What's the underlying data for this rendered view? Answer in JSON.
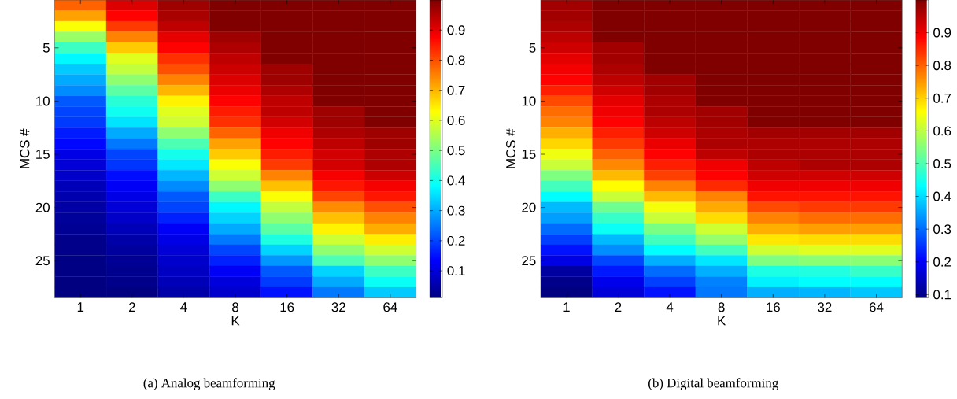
{
  "chart_data": [
    {
      "type": "heatmap",
      "title": "(a)  Analog beamforming",
      "xlabel": "K",
      "ylabel": "MCS #",
      "categories": [
        "1",
        "2",
        "4",
        "8",
        "16",
        "32",
        "64"
      ],
      "y_categories": [
        null,
        null,
        null,
        null,
        "5",
        null,
        null,
        null,
        null,
        "10",
        null,
        null,
        null,
        null,
        "15",
        null,
        null,
        null,
        null,
        "20",
        null,
        null,
        null,
        null,
        "25",
        null,
        null,
        null
      ],
      "cells": [
        [
          0.78,
          0.91,
          0.97,
          1,
          1,
          1,
          1
        ],
        [
          0.72,
          0.875,
          0.96,
          1,
          1,
          1,
          1
        ],
        [
          0.625,
          0.82,
          0.94,
          1,
          1,
          1,
          1
        ],
        [
          0.53,
          0.75,
          0.9,
          0.97,
          1,
          1,
          1
        ],
        [
          0.44,
          0.68,
          0.875,
          0.955,
          1,
          1,
          1
        ],
        [
          0.375,
          0.6,
          0.83,
          0.94,
          1,
          1,
          1
        ],
        [
          0.33,
          0.57,
          0.8,
          0.925,
          0.97,
          1,
          1
        ],
        [
          0.3,
          0.52,
          0.75,
          0.91,
          0.97,
          1,
          1
        ],
        [
          0.27,
          0.47,
          0.7,
          0.895,
          0.955,
          1,
          1
        ],
        [
          0.22,
          0.42,
          0.64,
          0.875,
          0.94,
          1,
          1
        ],
        [
          0.2,
          0.395,
          0.6,
          0.85,
          0.94,
          0.97,
          1
        ],
        [
          0.19,
          0.355,
          0.58,
          0.83,
          0.92,
          0.97,
          1
        ],
        [
          0.16,
          0.3,
          0.52,
          0.78,
          0.89,
          0.955,
          0.97
        ],
        [
          0.14,
          0.25,
          0.455,
          0.72,
          0.875,
          0.94,
          0.97
        ],
        [
          0.11,
          0.2,
          0.4,
          0.68,
          0.85,
          0.92,
          0.955
        ],
        [
          0.095,
          0.185,
          0.36,
          0.625,
          0.82,
          0.92,
          0.955
        ],
        [
          0.08,
          0.145,
          0.31,
          0.58,
          0.75,
          0.885,
          0.925
        ],
        [
          0.065,
          0.125,
          0.27,
          0.52,
          0.69,
          0.855,
          0.885
        ],
        [
          0.055,
          0.11,
          0.22,
          0.44,
          0.625,
          0.81,
          0.855
        ],
        [
          0.045,
          0.095,
          0.2,
          0.375,
          0.57,
          0.74,
          0.8
        ],
        [
          0.035,
          0.08,
          0.165,
          0.34,
          0.52,
          0.69,
          0.75
        ],
        [
          0.03,
          0.065,
          0.125,
          0.3,
          0.47,
          0.64,
          0.71
        ],
        [
          0.02,
          0.05,
          0.11,
          0.25,
          0.41,
          0.58,
          0.645
        ],
        [
          0.02,
          0.04,
          0.095,
          0.2,
          0.34,
          0.52,
          0.58
        ],
        [
          0.015,
          0.03,
          0.085,
          0.165,
          0.28,
          0.455,
          0.52
        ],
        [
          0.015,
          0.025,
          0.075,
          0.125,
          0.22,
          0.34,
          0.44
        ],
        [
          0.01,
          0.02,
          0.065,
          0.1,
          0.19,
          0.3,
          0.39
        ],
        [
          0.01,
          0.01,
          0.05,
          0.085,
          0.15,
          0.25,
          0.33
        ]
      ],
      "clim": [
        0.01,
        1
      ],
      "cticks": [
        0.1,
        0.2,
        0.3,
        0.4,
        0.5,
        0.6,
        0.7,
        0.8,
        0.9
      ]
    },
    {
      "type": "heatmap",
      "title": "(b)  Digital beamforming",
      "xlabel": "K",
      "ylabel": "MCS #",
      "categories": [
        "1",
        "2",
        "4",
        "8",
        "16",
        "32",
        "64"
      ],
      "y_categories": [
        null,
        null,
        null,
        null,
        "5",
        null,
        null,
        null,
        null,
        "10",
        null,
        null,
        null,
        null,
        "15",
        null,
        null,
        null,
        null,
        "20",
        null,
        null,
        null,
        null,
        "25",
        null,
        null,
        null
      ],
      "cells": [
        [
          0.97,
          1,
          1,
          1,
          1,
          1,
          1
        ],
        [
          0.97,
          1,
          1,
          1,
          1,
          1,
          1
        ],
        [
          0.96,
          1,
          1,
          1,
          1,
          1,
          1
        ],
        [
          0.945,
          1,
          1,
          1,
          1,
          1,
          1
        ],
        [
          0.93,
          0.97,
          1,
          1,
          1,
          1,
          1
        ],
        [
          0.91,
          0.97,
          1,
          1,
          1,
          1,
          1
        ],
        [
          0.895,
          0.96,
          1,
          1,
          1,
          1,
          1
        ],
        [
          0.885,
          0.945,
          0.97,
          1,
          1,
          1,
          1
        ],
        [
          0.86,
          0.93,
          0.97,
          1,
          1,
          1,
          1
        ],
        [
          0.82,
          0.91,
          0.96,
          1,
          1,
          1,
          1
        ],
        [
          0.79,
          0.9,
          0.96,
          0.97,
          1,
          1,
          1
        ],
        [
          0.77,
          0.885,
          0.945,
          0.97,
          1,
          1,
          1
        ],
        [
          0.73,
          0.86,
          0.93,
          0.96,
          0.97,
          0.97,
          0.97
        ],
        [
          0.695,
          0.835,
          0.905,
          0.96,
          0.96,
          0.96,
          0.96
        ],
        [
          0.645,
          0.8,
          0.885,
          0.945,
          0.96,
          0.96,
          0.96
        ],
        [
          0.61,
          0.765,
          0.86,
          0.9,
          0.945,
          0.96,
          0.96
        ],
        [
          0.545,
          0.72,
          0.83,
          0.885,
          0.93,
          0.93,
          0.93
        ],
        [
          0.49,
          0.66,
          0.77,
          0.85,
          0.9,
          0.9,
          0.9
        ],
        [
          0.43,
          0.61,
          0.72,
          0.77,
          0.87,
          0.87,
          0.87
        ],
        [
          0.37,
          0.53,
          0.65,
          0.735,
          0.82,
          0.835,
          0.835
        ],
        [
          0.345,
          0.48,
          0.61,
          0.69,
          0.77,
          0.79,
          0.79
        ],
        [
          0.3,
          0.44,
          0.54,
          0.615,
          0.73,
          0.745,
          0.745
        ],
        [
          0.26,
          0.37,
          0.49,
          0.565,
          0.68,
          0.69,
          0.69
        ],
        [
          0.22,
          0.33,
          0.43,
          0.49,
          0.615,
          0.63,
          0.63
        ],
        [
          0.18,
          0.265,
          0.36,
          0.41,
          0.545,
          0.555,
          0.555
        ],
        [
          0.12,
          0.225,
          0.3,
          0.36,
          0.455,
          0.46,
          0.48
        ],
        [
          0.1,
          0.185,
          0.26,
          0.32,
          0.42,
          0.43,
          0.43
        ],
        [
          0.09,
          0.17,
          0.22,
          0.31,
          0.36,
          0.365,
          0.38
        ]
      ],
      "clim": [
        0.09,
        1
      ],
      "cticks": [
        0.1,
        0.2,
        0.3,
        0.4,
        0.5,
        0.6,
        0.7,
        0.8,
        0.9
      ]
    }
  ]
}
